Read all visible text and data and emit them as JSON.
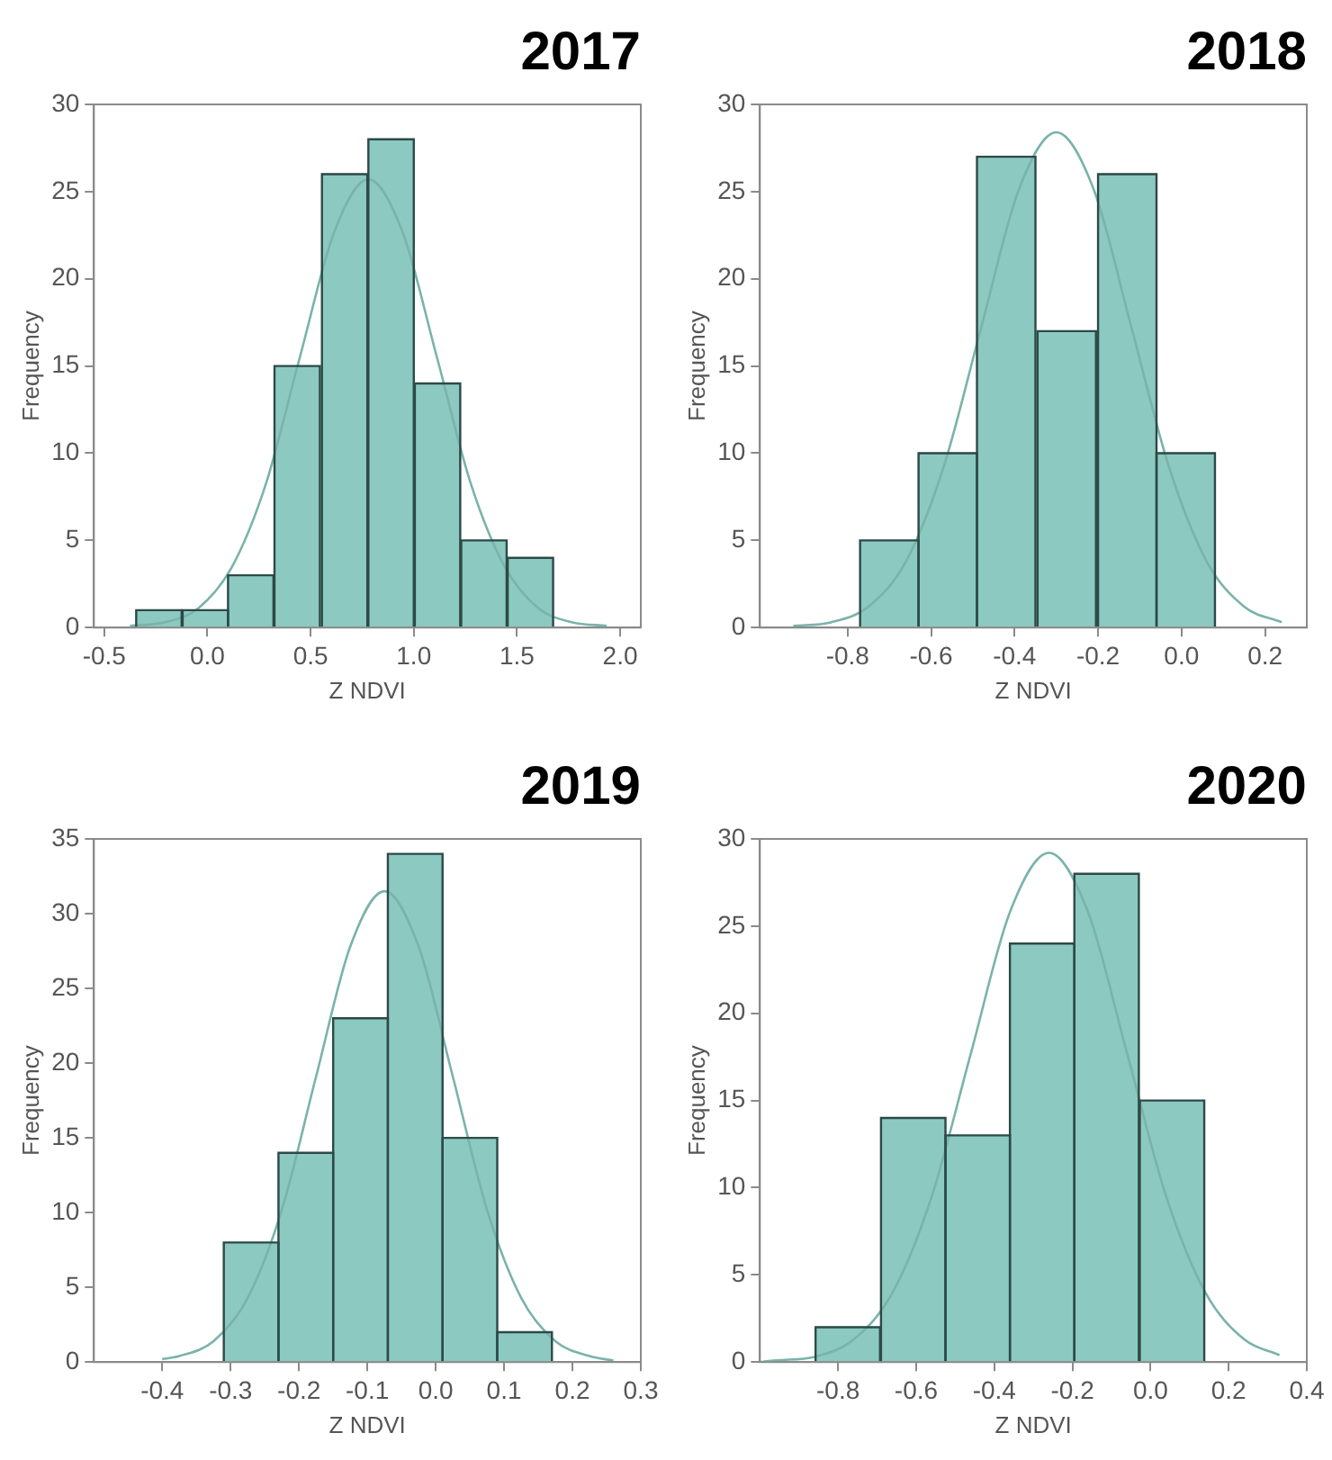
{
  "chart_data": [
    {
      "type": "histogram",
      "title": "2017",
      "xlabel": "Z NDVI",
      "ylabel": "Frequency",
      "bins": [
        -0.35,
        -0.12,
        0.1,
        0.32,
        0.55,
        0.78,
        1.0,
        1.23,
        1.45,
        1.68
      ],
      "values": [
        1,
        1,
        3,
        15,
        26,
        28,
        14,
        5,
        4
      ],
      "color": "#8cc9c1",
      "xlim": [
        -0.55,
        2.1
      ],
      "xticks": [
        -0.5,
        {
          "value": 0,
          "label": "0.0"
        },
        0.5,
        {
          "value": 1,
          "label": "1.0"
        },
        1.5,
        {
          "value": 2,
          "label": "2.0"
        }
      ],
      "ylim": [
        0,
        30
      ],
      "yticks": [
        0,
        5,
        10,
        15,
        20,
        25,
        30
      ],
      "grid": false,
      "series": [
        {
          "type": "line",
          "marker": "none",
          "color": "#7ab3ab",
          "x": [
            -0.375,
            -0.21,
            -0.045,
            0.12,
            0.285,
            0.45,
            0.615,
            0.78,
            0.945,
            1.11,
            1.275,
            1.44,
            1.605,
            1.77,
            1.935
          ],
          "values": [
            0.1,
            0.3,
            1.1,
            3.5,
            8.3,
            15.6,
            22.7,
            25.7,
            22.7,
            15.6,
            8.3,
            3.5,
            1.1,
            0.3,
            0.1
          ]
        }
      ]
    },
    {
      "type": "histogram",
      "title": "2018",
      "xlabel": "Z NDVI",
      "ylabel": "Frequency",
      "bins": [
        -0.77,
        -0.63,
        -0.49,
        -0.35,
        -0.2,
        -0.06,
        0.08
      ],
      "values": [
        5,
        10,
        27,
        17,
        26,
        10
      ],
      "color": "#8cc9c1",
      "xlim": [
        -1.01,
        0.3
      ],
      "xticks": [
        -0.8,
        -0.6,
        -0.4,
        -0.2,
        {
          "value": 0,
          "label": "0.0"
        },
        0.2
      ],
      "ylim": [
        0,
        30
      ],
      "yticks": [
        0,
        5,
        10,
        15,
        20,
        25,
        30
      ],
      "grid": false,
      "series": [
        {
          "type": "line",
          "marker": "none",
          "color": "#7ab3ab",
          "x": [
            -0.93,
            -0.84,
            -0.75,
            -0.66,
            -0.57,
            -0.48,
            -0.39,
            -0.3,
            -0.21,
            -0.12,
            -0.03,
            0.06,
            0.15,
            0.24
          ],
          "values": [
            0.1,
            0.3,
            1.2,
            3.8,
            9.2,
            17.2,
            25.1,
            28.4,
            25.1,
            17.2,
            9.2,
            3.8,
            1.2,
            0.3
          ]
        }
      ]
    },
    {
      "type": "histogram",
      "title": "2019",
      "xlabel": "Z NDVI",
      "ylabel": "Frequency",
      "bins": [
        -0.31,
        -0.23,
        -0.15,
        -0.07,
        0.01,
        0.09,
        0.17
      ],
      "values": [
        8,
        14,
        23,
        34,
        15,
        2
      ],
      "color": "#8cc9c1",
      "xlim": [
        -0.5,
        0.3
      ],
      "xticks": [
        -0.4,
        -0.3,
        -0.2,
        -0.1,
        {
          "value": 0,
          "label": "0.0"
        },
        0.1,
        0.2,
        0.3
      ],
      "ylim": [
        0,
        35
      ],
      "yticks": [
        0,
        5,
        10,
        15,
        20,
        25,
        30,
        35
      ],
      "grid": false,
      "series": [
        {
          "type": "line",
          "marker": "none",
          "color": "#7ab3ab",
          "x": [
            -0.4,
            -0.375,
            -0.325,
            -0.275,
            -0.225,
            -0.175,
            -0.125,
            -0.075,
            -0.025,
            0.025,
            0.075,
            0.125,
            0.175,
            0.225,
            0.26
          ],
          "values": [
            0.2,
            0.4,
            1.4,
            4.3,
            10.2,
            19.1,
            27.8,
            31.5,
            27.8,
            19.1,
            10.2,
            4.3,
            1.4,
            0.4,
            0.1
          ]
        }
      ]
    },
    {
      "type": "histogram",
      "title": "2020",
      "xlabel": "Z NDVI",
      "ylabel": "Frequency",
      "bins": [
        -0.86,
        -0.69,
        -0.525,
        -0.36,
        -0.195,
        -0.03,
        0.14
      ],
      "values": [
        2,
        14,
        13,
        24,
        28,
        15
      ],
      "color": "#8cc9c1",
      "xlim": [
        -1.0,
        0.4
      ],
      "xticks": [
        -0.8,
        -0.6,
        -0.4,
        -0.2,
        {
          "value": 0,
          "label": "0.0"
        },
        0.2,
        0.4
      ],
      "ylim": [
        0,
        30
      ],
      "yticks": [
        0,
        5,
        10,
        15,
        20,
        25,
        30
      ],
      "grid": false,
      "series": [
        {
          "type": "line",
          "marker": "none",
          "color": "#7ab3ab",
          "x": [
            -1.0,
            -0.96,
            -0.86,
            -0.76,
            -0.66,
            -0.56,
            -0.46,
            -0.36,
            -0.26,
            -0.16,
            -0.06,
            0.04,
            0.14,
            0.24,
            0.33
          ],
          "values": [
            0.0,
            0.1,
            0.3,
            1.3,
            4.0,
            9.5,
            17.7,
            25.8,
            29.2,
            25.8,
            17.7,
            9.5,
            4.0,
            1.3,
            0.4
          ]
        }
      ]
    }
  ]
}
